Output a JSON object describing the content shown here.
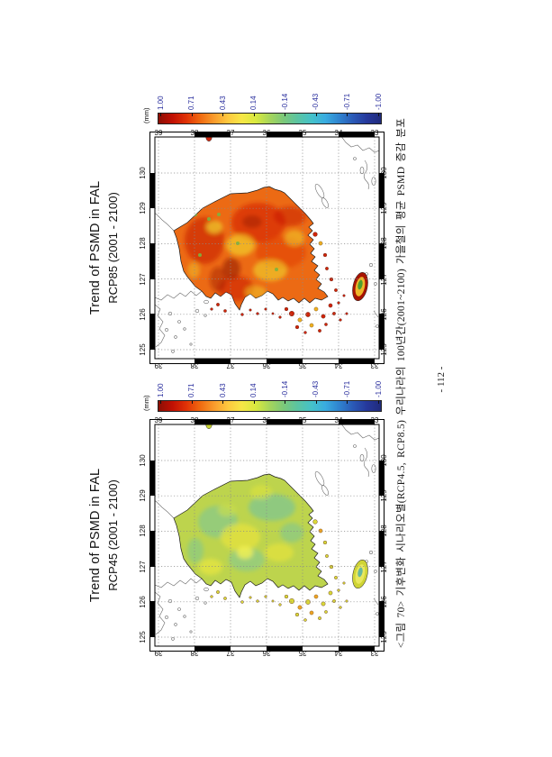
{
  "page": {
    "background": "#ffffff",
    "number_label": "- 112 -"
  },
  "caption": {
    "text": "<그림 70> 기후변화 시나리오별(RCP4.5, RCP8.5) 우리나라의 100년간(2001~2100) 가을철의 평균 PSMD 증감 분포"
  },
  "colorbar": {
    "unit_label": "(mm)",
    "tick_labels": [
      "1.00",
      "0.71",
      "0.43",
      "0.14",
      "-0.14",
      "-0.43",
      "-0.71",
      "-1.00"
    ],
    "label_color": "#2a2f9e",
    "gradient": [
      "#8c0f05",
      "#c11104",
      "#e03206",
      "#f06a10",
      "#f99c2c",
      "#fdc93f",
      "#f7e746",
      "#d8e93f",
      "#a6d55b",
      "#7bc87a",
      "#5bc4a2",
      "#45c2c9",
      "#39ace0",
      "#2f83cf",
      "#2a59b6",
      "#26389b",
      "#202b7c"
    ]
  },
  "axes": {
    "latitude_labels": [
      "39",
      "38",
      "37",
      "36",
      "35",
      "34",
      "33"
    ],
    "longitude_labels": [
      "130",
      "129",
      "128",
      "127",
      "126",
      "125"
    ]
  },
  "figures": [
    {
      "id": "rcp85",
      "title_line1": "Trend of PSMD in FAL",
      "title_line2": "RCP85 (2001 - 2100)",
      "palette": {
        "land_base": "#ec6a14",
        "island": "#cf2408",
        "island_alt": "#f0b020",
        "jeju_outer": "#a81302",
        "jeju_mid": "#f0b62a",
        "jeju_core": "#4f9e2e",
        "ulleung": "#d02810"
      }
    },
    {
      "id": "rcp45",
      "title_line1": "Trend of PSMD in FAL",
      "title_line2": "RCP45 (2001 - 2100)",
      "palette": {
        "land_base": "#bdd44d",
        "island": "#d9d838",
        "island_alt": "#eda326",
        "jeju_outer": "#cfd434",
        "jeju_mid": "#e9e85e",
        "jeju_core": "#68b89c",
        "ulleung": "#c9d434"
      }
    }
  ]
}
